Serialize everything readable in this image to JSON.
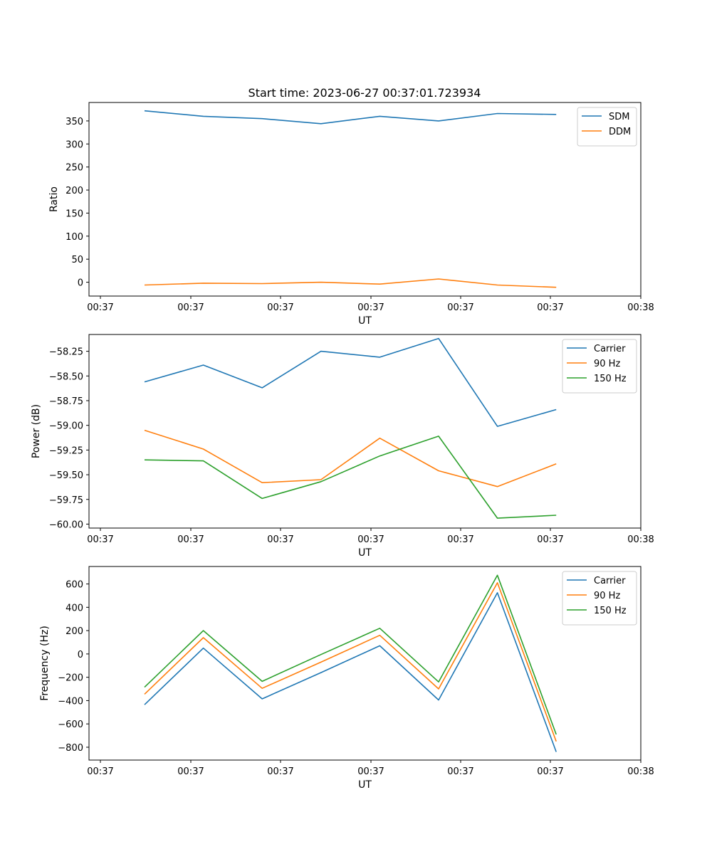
{
  "title": "Start time: 2023-06-27 00:37:01.723934",
  "colors": {
    "blue": "#1f77b4",
    "orange": "#ff7f0e",
    "green": "#2ca02c"
  },
  "chart_data": [
    {
      "type": "line",
      "ylabel": "Ratio",
      "xlabel": "UT",
      "x_tick_labels": [
        "00:37",
        "00:37",
        "00:37",
        "00:37",
        "00:37",
        "00:37",
        "00:38"
      ],
      "y_ticks": [
        0,
        50,
        100,
        150,
        200,
        250,
        300,
        350
      ],
      "ylim": [
        -30,
        390
      ],
      "legend": "top-right",
      "series": [
        {
          "name": "SDM",
          "color": "#1f77b4",
          "values": [
            372,
            360,
            355,
            344,
            360,
            350,
            366,
            364
          ]
        },
        {
          "name": "DDM",
          "color": "#ff7f0e",
          "values": [
            -6,
            -2,
            -3,
            0,
            -4,
            7,
            -6,
            -11
          ]
        }
      ]
    },
    {
      "type": "line",
      "ylabel": "Power (dB)",
      "xlabel": "UT",
      "x_tick_labels": [
        "00:37",
        "00:37",
        "00:37",
        "00:37",
        "00:37",
        "00:37",
        "00:38"
      ],
      "y_ticks": [
        -58.25,
        -58.5,
        -58.75,
        -59.0,
        -59.25,
        -59.5,
        -59.75,
        -60.0
      ],
      "y_tick_labels": [
        "−58.25",
        "−58.50",
        "−58.75",
        "−59.00",
        "−59.25",
        "−59.50",
        "−59.75",
        "−60.00"
      ],
      "ylim": [
        -60.04,
        -58.08
      ],
      "legend": "top-right",
      "series": [
        {
          "name": "Carrier",
          "color": "#1f77b4",
          "values": [
            -58.56,
            -58.39,
            -58.62,
            -58.25,
            -58.31,
            -58.12,
            -59.01,
            -58.84
          ]
        },
        {
          "name": "90 Hz",
          "color": "#ff7f0e",
          "values": [
            -59.05,
            -59.24,
            -59.58,
            -59.55,
            -59.13,
            -59.46,
            -59.62,
            -59.39
          ]
        },
        {
          "name": "150 Hz",
          "color": "#2ca02c",
          "values": [
            -59.35,
            -59.36,
            -59.74,
            -59.57,
            -59.31,
            -59.11,
            -59.94,
            -59.91
          ]
        }
      ]
    },
    {
      "type": "line",
      "ylabel": "Frequency (Hz)",
      "xlabel": "UT",
      "x_tick_labels": [
        "00:37",
        "00:37",
        "00:37",
        "00:37",
        "00:37",
        "00:37",
        "00:38"
      ],
      "y_ticks": [
        600,
        400,
        200,
        0,
        -200,
        -400,
        -600,
        -800
      ],
      "y_tick_labels": [
        "600",
        "400",
        "200",
        "0",
        "−200",
        "−400",
        "−600",
        "−800"
      ],
      "ylim": [
        -910,
        750
      ],
      "legend": "top-right",
      "series": [
        {
          "name": "Carrier",
          "color": "#1f77b4",
          "values": [
            -435,
            50,
            -385,
            -160,
            70,
            -395,
            525,
            -840
          ]
        },
        {
          "name": "90 Hz",
          "color": "#ff7f0e",
          "values": [
            -345,
            140,
            -295,
            -70,
            160,
            -300,
            610,
            -750
          ]
        },
        {
          "name": "150 Hz",
          "color": "#2ca02c",
          "values": [
            -285,
            200,
            -235,
            -5,
            220,
            -240,
            675,
            -690
          ]
        }
      ]
    }
  ]
}
